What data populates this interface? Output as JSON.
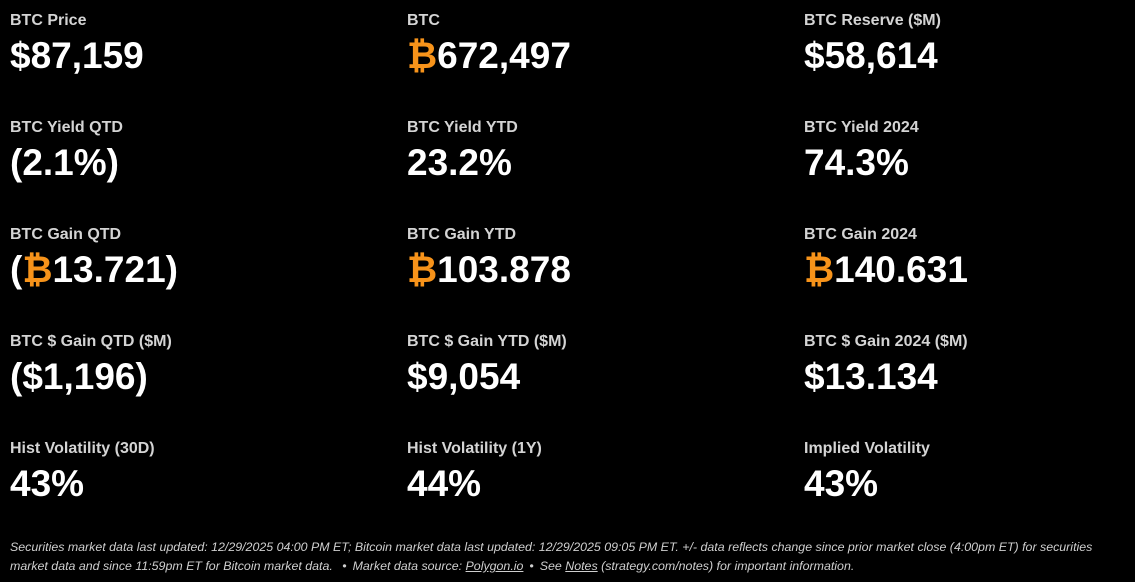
{
  "colors": {
    "background": "#000000",
    "label": "#d4d4d4",
    "value": "#ffffff",
    "bitcoin_accent": "#f7931a",
    "footer": "#cfcfcf"
  },
  "btc_symbol": "₿",
  "metrics": [
    [
      {
        "label": "BTC Price",
        "prefix": "",
        "symbol": "",
        "value": "$87,159",
        "suffix": ""
      },
      {
        "label": "BTC",
        "prefix": "",
        "symbol": "₿",
        "value": "672,497",
        "suffix": ""
      },
      {
        "label": "BTC Reserve ($M)",
        "prefix": "",
        "symbol": "",
        "value": "$58,614",
        "suffix": ""
      }
    ],
    [
      {
        "label": "BTC Yield QTD",
        "prefix": "",
        "symbol": "",
        "value": "(2.1%)",
        "suffix": ""
      },
      {
        "label": "BTC Yield YTD",
        "prefix": "",
        "symbol": "",
        "value": "23.2%",
        "suffix": ""
      },
      {
        "label": "BTC Yield 2024",
        "prefix": "",
        "symbol": "",
        "value": "74.3%",
        "suffix": ""
      }
    ],
    [
      {
        "label": "BTC Gain QTD",
        "prefix": "(",
        "symbol": "₿",
        "value": "13.721",
        "suffix": ")"
      },
      {
        "label": "BTC Gain YTD",
        "prefix": "",
        "symbol": "₿",
        "value": "103.878",
        "suffix": ""
      },
      {
        "label": "BTC Gain 2024",
        "prefix": "",
        "symbol": "₿",
        "value": "140.631",
        "suffix": ""
      }
    ],
    [
      {
        "label": "BTC $ Gain QTD ($M)",
        "prefix": "",
        "symbol": "",
        "value": "($1,196)",
        "suffix": ""
      },
      {
        "label": "BTC $ Gain YTD ($M)",
        "prefix": "",
        "symbol": "",
        "value": "$9,054",
        "suffix": ""
      },
      {
        "label": "BTC $ Gain 2024 ($M)",
        "prefix": "",
        "symbol": "",
        "value": "$13.134",
        "suffix": ""
      }
    ],
    [
      {
        "label": "Hist Volatility (30D)",
        "prefix": "",
        "symbol": "",
        "value": "43%",
        "suffix": ""
      },
      {
        "label": "Hist Volatility (1Y)",
        "prefix": "",
        "symbol": "",
        "value": "44%",
        "suffix": ""
      },
      {
        "label": "Implied Volatility",
        "prefix": "",
        "symbol": "",
        "value": "43%",
        "suffix": ""
      }
    ]
  ],
  "footer": {
    "text_1": "Securities market data last updated: 12/29/2025 04:00 PM ET; Bitcoin market data last updated: 12/29/2025 09:05 PM ET. +/- data reflects change since prior market close (4:00pm ET) for securities market data and since 11:59pm ET for Bitcoin market data.",
    "separator": "•",
    "text_2": "Market data source:",
    "link_polygon": "Polygon.io",
    "text_3": "See",
    "link_notes": "Notes",
    "text_4": "(strategy.com/notes) for important information."
  }
}
